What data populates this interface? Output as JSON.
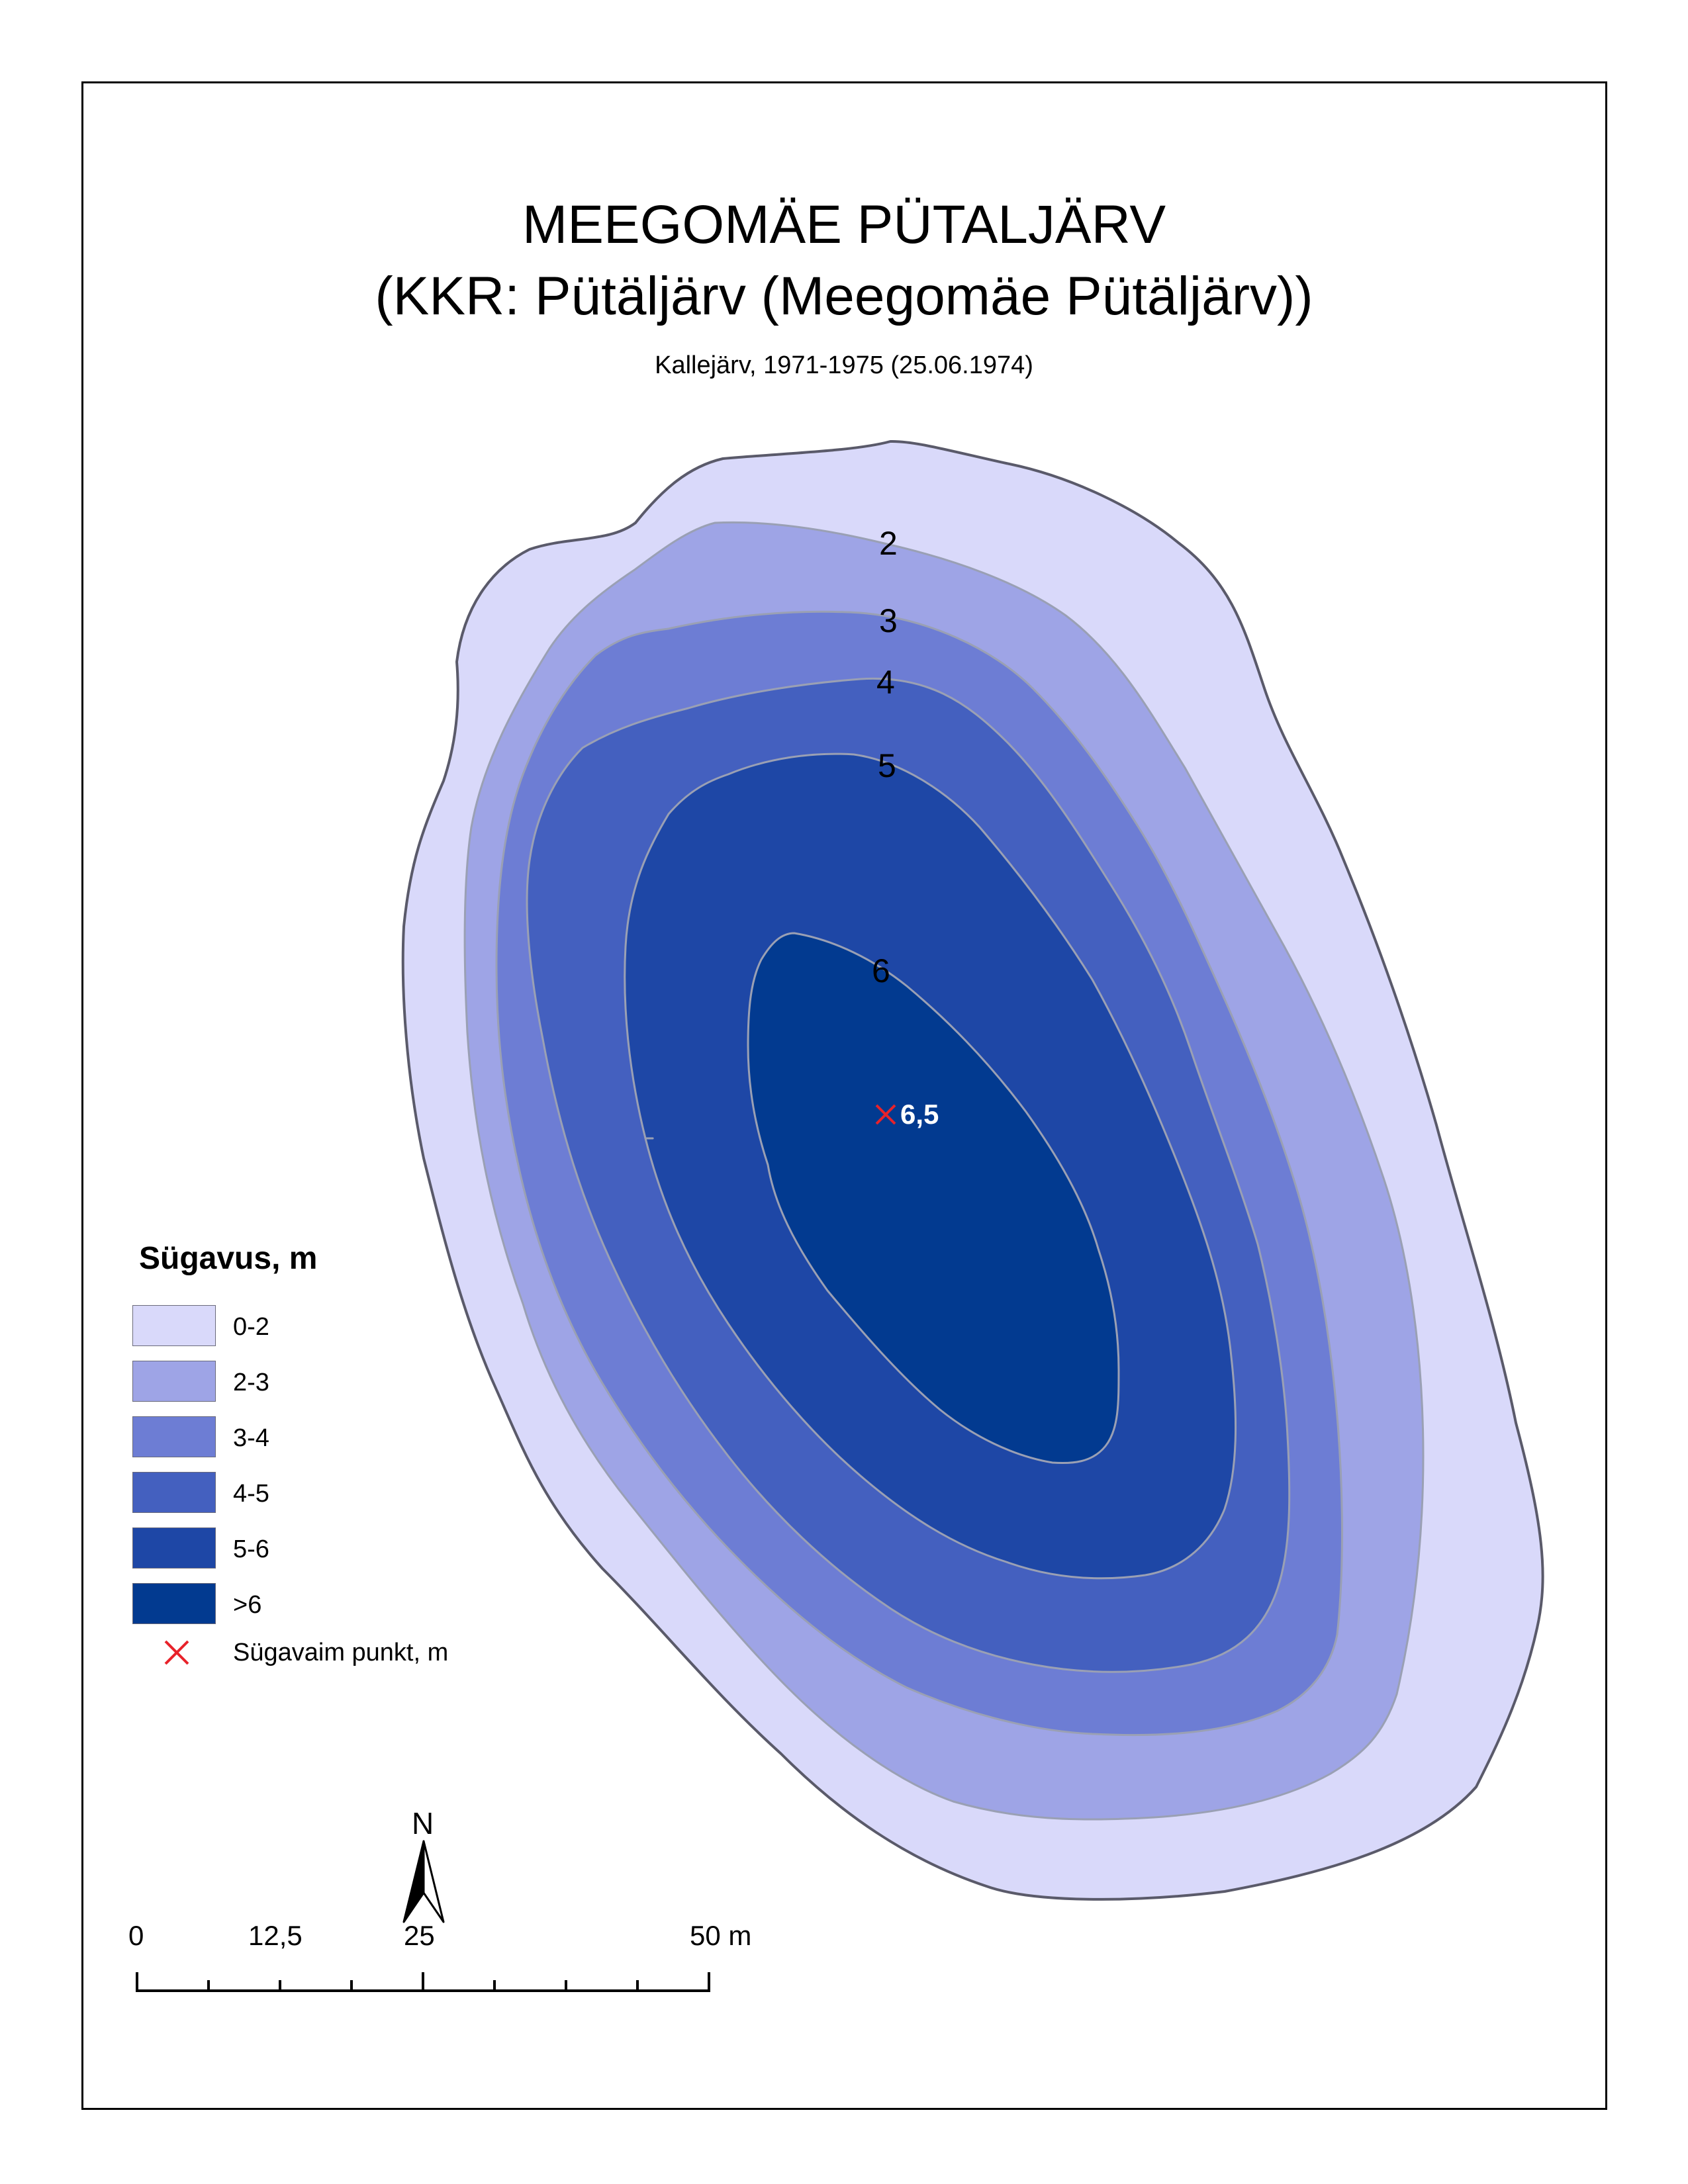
{
  "title": {
    "line1": "MEEGOMÄE PÜTALJÄRV",
    "line2": "(KKR: Pütäljärv (Meegomäe Pütäljärv))",
    "subtitle": "Kallejärv, 1971-1975 (25.06.1974)"
  },
  "colors": {
    "depth_0_2": "#d9d9fa",
    "depth_2_3": "#9ea4e6",
    "depth_3_4": "#6d7dd4",
    "depth_4_5": "#4460bf",
    "depth_5_6": "#1e47a6",
    "depth_gt_6": "#023a90",
    "shore_line": "#5a5a6a",
    "contour_line": "#9aa0b4",
    "deepest_marker": "#e8222a"
  },
  "contour_labels": [
    "2",
    "3",
    "4",
    "5",
    "6"
  ],
  "deepest_point": {
    "value": "6,5",
    "icon": "red-x-icon"
  },
  "legend": {
    "title": "Sügavus, m",
    "items": [
      {
        "label": "0-2",
        "color": "#d9d9fa"
      },
      {
        "label": "2-3",
        "color": "#9ea4e6"
      },
      {
        "label": "3-4",
        "color": "#6d7dd4"
      },
      {
        "label": "4-5",
        "color": "#4460bf"
      },
      {
        "label": "5-6",
        "color": "#1e47a6"
      },
      {
        "label": ">6",
        "color": "#023a90"
      }
    ],
    "deepest_label": "Sügavaim punkt, m"
  },
  "north": {
    "label": "N",
    "icon": "north-arrow-icon"
  },
  "scale": {
    "labels": [
      "0",
      "12,5",
      "25",
      "50 m"
    ]
  }
}
